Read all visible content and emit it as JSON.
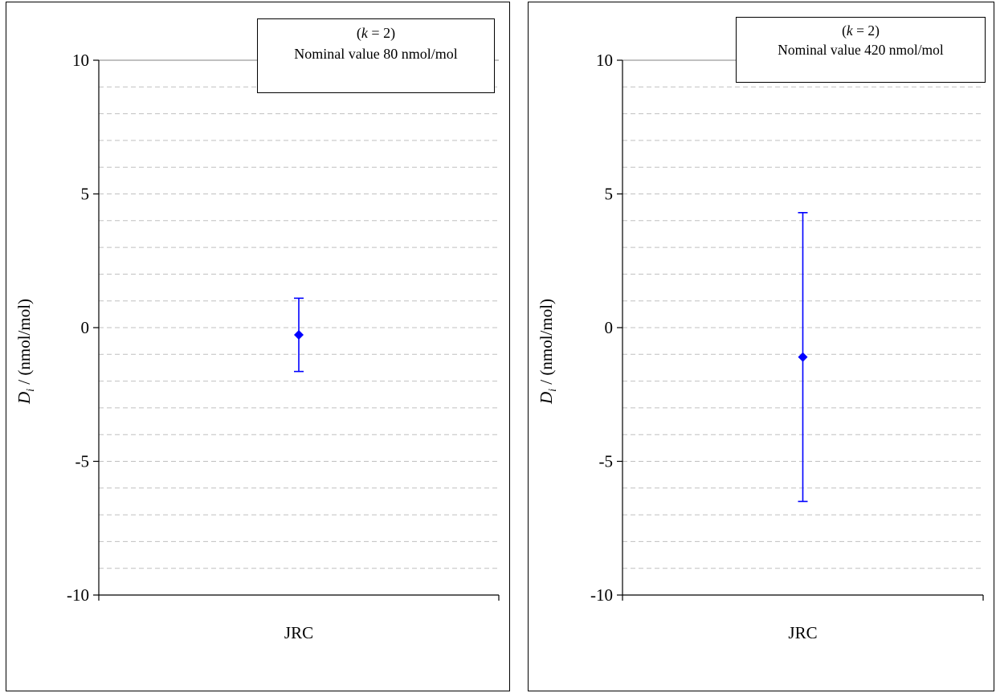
{
  "charts": [
    {
      "legend": {
        "line1_open": "(",
        "k_symbol": "k",
        "line1_rest": " = 2)",
        "line2": "Nominal value 80 nmol/mol"
      },
      "ylabel_symbol": "D",
      "ylabel_sub": "i",
      "ylabel_unit": " / (nmol/mol)",
      "chart_data": {
        "type": "scatter",
        "categories": [
          "JRC"
        ],
        "x": [
          "JRC"
        ],
        "y": [
          -0.27
        ],
        "error": [
          1.37
        ],
        "ylim": [
          -10,
          10
        ],
        "yticks": [
          "10",
          "5",
          "0",
          "-5",
          "-10"
        ],
        "ytick_values": [
          10,
          5,
          0,
          -5,
          -10
        ],
        "grid": true,
        "marker_color": "#0000ff"
      }
    },
    {
      "legend": {
        "line1_open": "(",
        "k_symbol": "k",
        "line1_rest": " = 2)",
        "line2": "Nominal value 420 nmol/mol"
      },
      "ylabel_symbol": "D",
      "ylabel_sub": "i",
      "ylabel_unit": " / (nmol/mol)",
      "chart_data": {
        "type": "scatter",
        "categories": [
          "JRC"
        ],
        "x": [
          "JRC"
        ],
        "y": [
          -1.1
        ],
        "error": [
          5.4
        ],
        "ylim": [
          -10,
          10
        ],
        "yticks": [
          "10",
          "5",
          "0",
          "-5",
          "-10"
        ],
        "ytick_values": [
          10,
          5,
          0,
          -5,
          -10
        ],
        "grid": true,
        "marker_color": "#0000ff"
      }
    }
  ]
}
